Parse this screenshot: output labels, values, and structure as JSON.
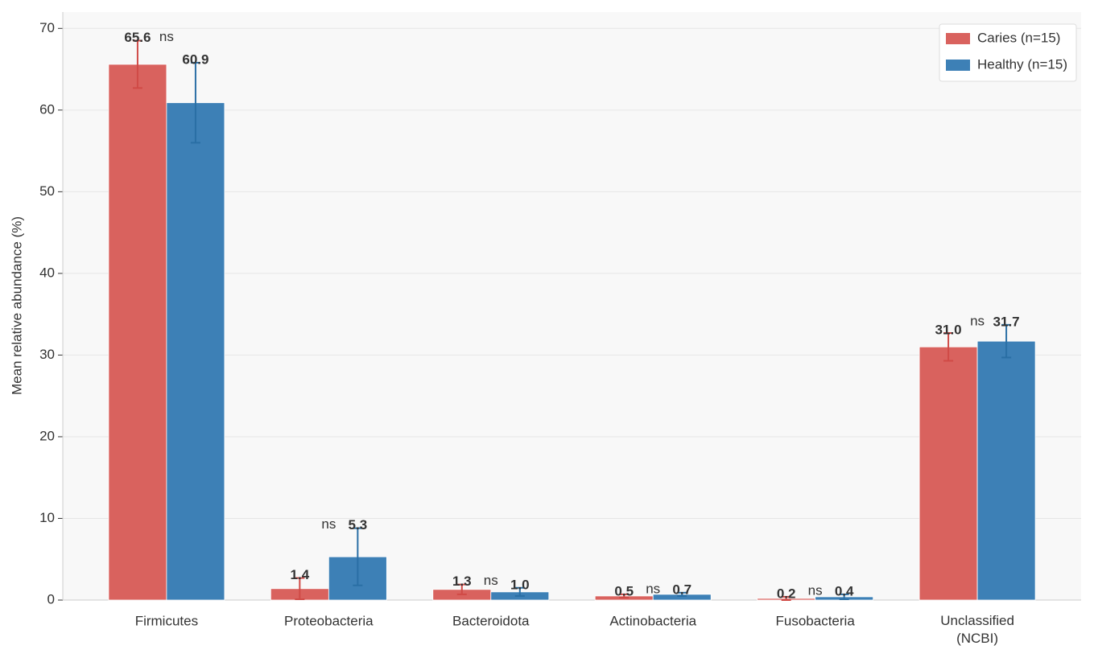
{
  "chart_data": {
    "type": "bar",
    "ylabel": "Mean relative abundance (%)",
    "categories": [
      "Firmicutes",
      "Proteobacteria",
      "Bacteroidota",
      "Actinobacteria",
      "Fusobacteria",
      "Unclassified\n(NCBI)"
    ],
    "series": [
      {
        "name": "Caries (n=15)",
        "color": "#d9625e",
        "label_color": "#d04a46",
        "values": [
          65.6,
          1.4,
          1.3,
          0.5,
          0.2,
          31.0
        ],
        "value_labels": [
          "65.6",
          "1.4",
          "1.3",
          "0.5",
          "0.2",
          "31.0"
        ],
        "errors": [
          2.9,
          1.3,
          0.6,
          0.2,
          0.2,
          1.7
        ]
      },
      {
        "name": "Healthy (n=15)",
        "color": "#3d80b6",
        "label_color": "#2a6fa5",
        "values": [
          60.9,
          5.3,
          1.0,
          0.7,
          0.4,
          31.7
        ],
        "value_labels": [
          "60.9",
          "5.3",
          "1.0",
          "0.7",
          "0.4",
          "31.7"
        ],
        "errors": [
          4.9,
          3.5,
          0.5,
          0.2,
          0.3,
          2.0
        ]
      }
    ],
    "significance": [
      "ns",
      "ns",
      "ns",
      "ns",
      "ns",
      "ns"
    ],
    "ylim": [
      0,
      72
    ],
    "yticks": [
      0,
      10,
      20,
      30,
      40,
      50,
      60,
      70
    ],
    "grid": true,
    "legend": "upper right"
  }
}
